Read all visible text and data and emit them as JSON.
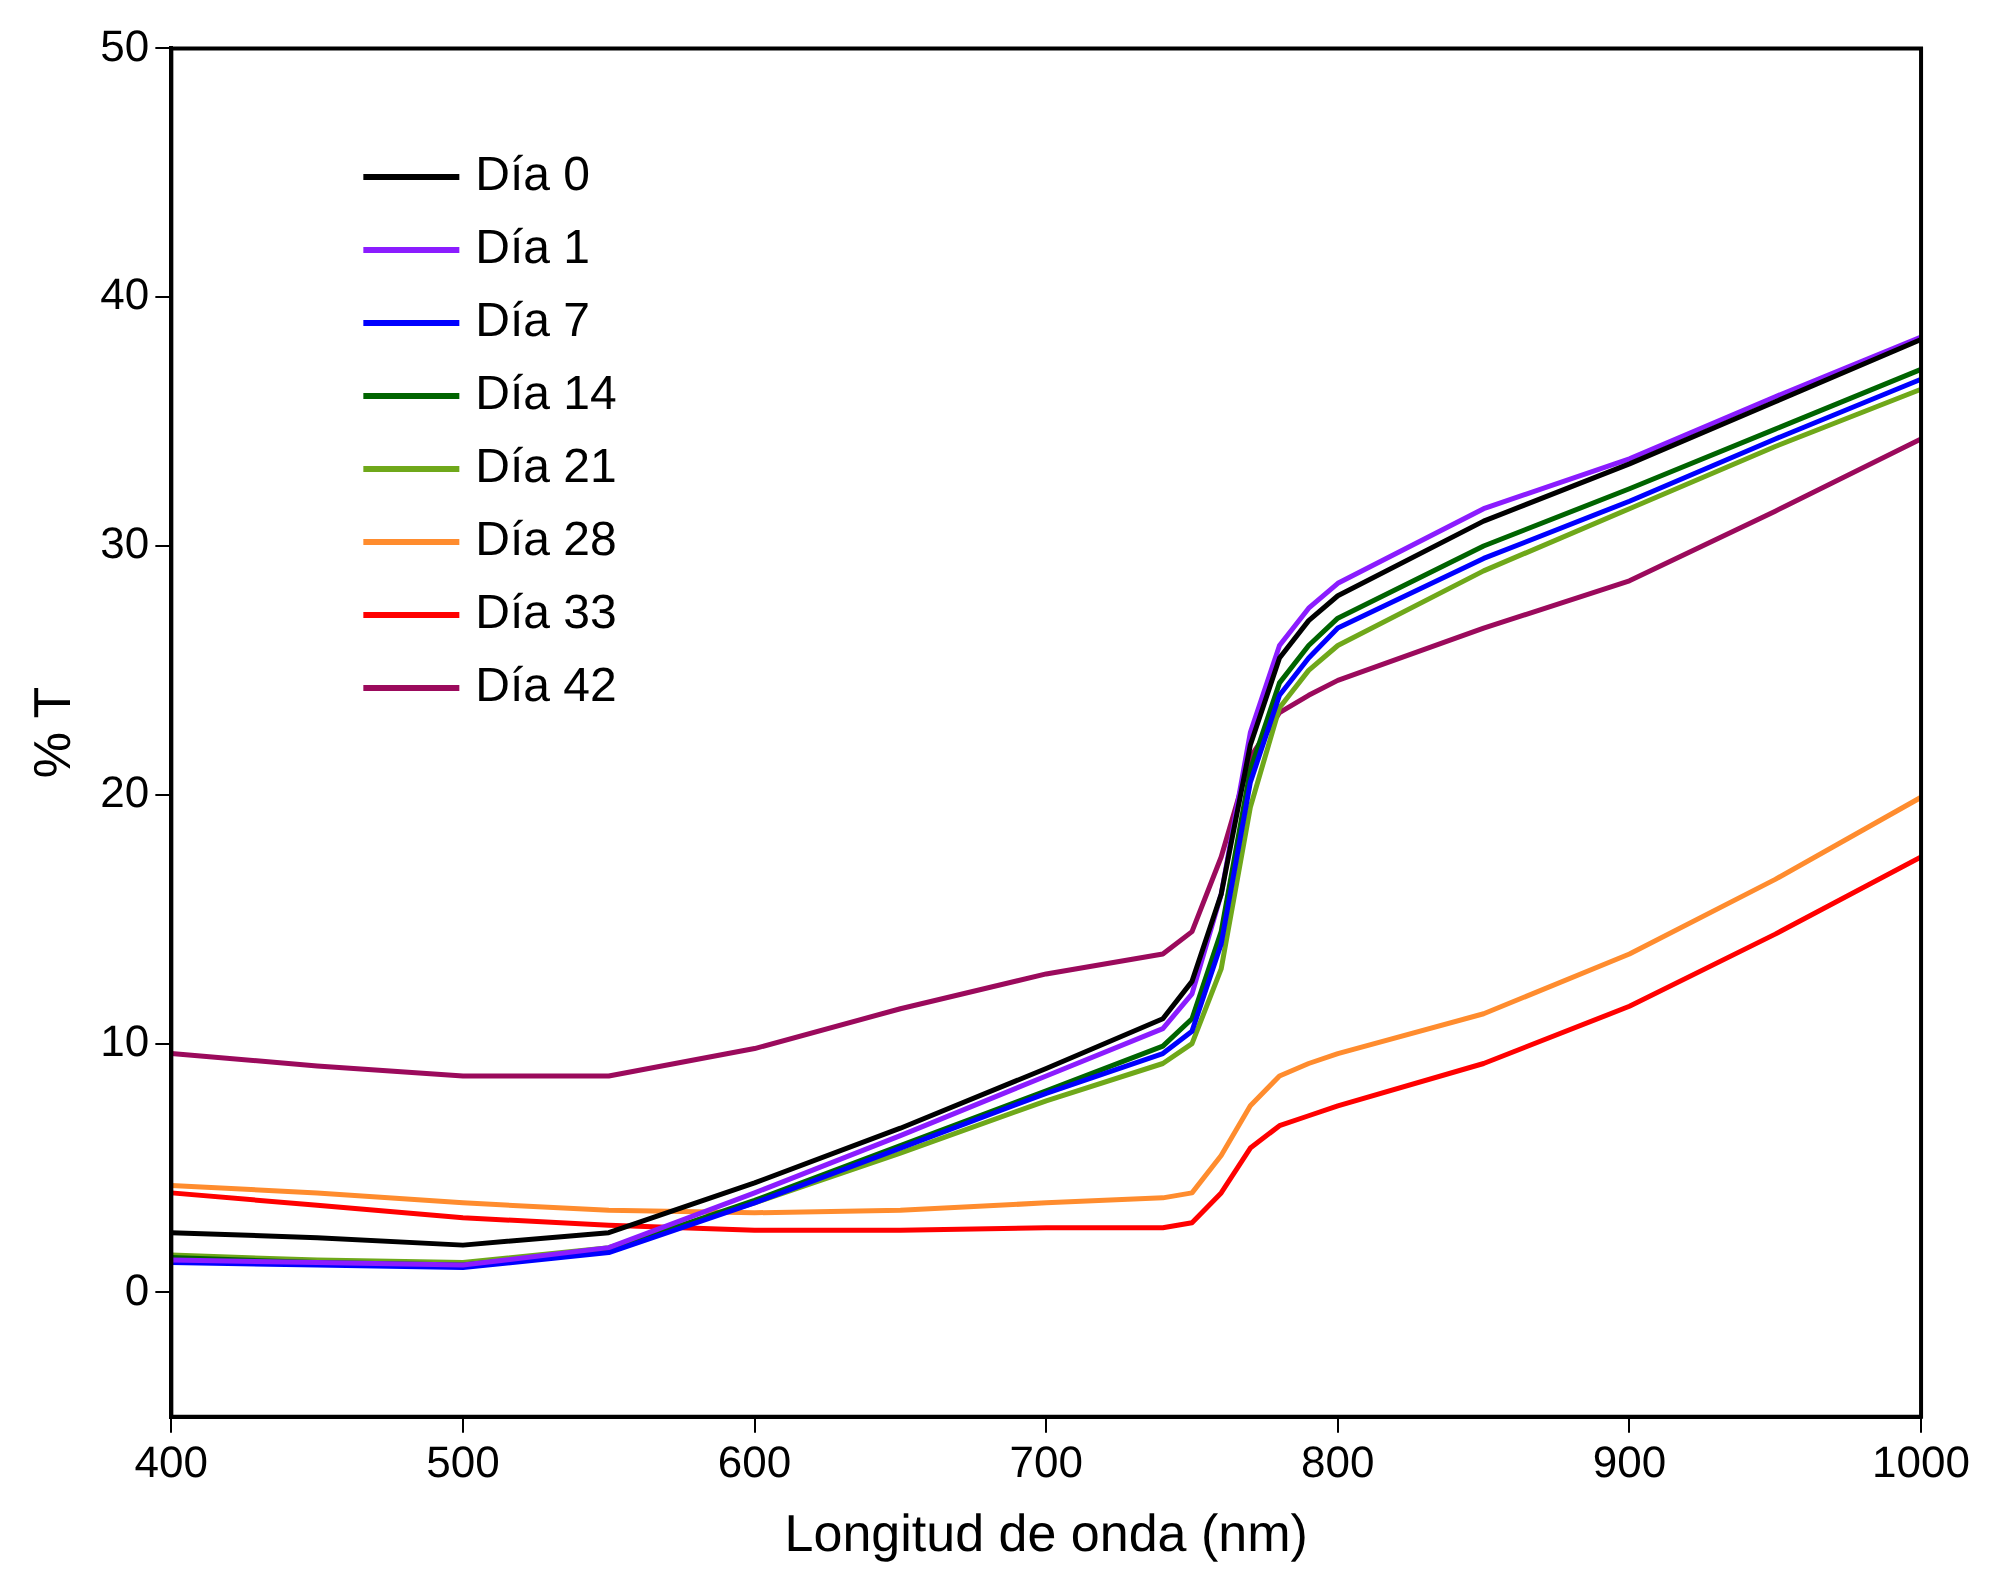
{
  "chart_data": {
    "type": "line",
    "xlabel": "Longitud de onda (nm)",
    "ylabel": "% T",
    "x": [
      400,
      450,
      500,
      550,
      600,
      650,
      700,
      740,
      750,
      760,
      770,
      780,
      790,
      800,
      850,
      900,
      950,
      1000
    ],
    "series": [
      {
        "name": "Día 0",
        "color": "#000000",
        "values": [
          2.4,
          2.2,
          1.9,
          2.4,
          4.4,
          6.6,
          9.0,
          11.0,
          12.5,
          16,
          22,
          25.5,
          27,
          28,
          31,
          33.3,
          35.8,
          38.3
        ]
      },
      {
        "name": "Día 1",
        "color": "#8b1cff",
        "values": [
          1.3,
          1.2,
          1.1,
          1.8,
          4.0,
          6.3,
          8.7,
          10.6,
          12,
          16,
          22.5,
          26,
          27.5,
          28.5,
          31.5,
          33.5,
          36,
          38.4
        ]
      },
      {
        "name": "Día 7",
        "color": "#0000ff",
        "values": [
          1.2,
          1.1,
          1.0,
          1.6,
          3.6,
          5.8,
          8.0,
          9.6,
          10.5,
          14,
          20.5,
          24,
          25.5,
          26.7,
          29.5,
          31.8,
          34.3,
          36.7
        ]
      },
      {
        "name": "Día 14",
        "color": "#006400",
        "values": [
          1.4,
          1.2,
          1.1,
          1.7,
          3.7,
          5.9,
          8.1,
          9.9,
          11,
          14.5,
          21,
          24.5,
          26,
          27.1,
          30,
          32.3,
          34.7,
          37.1
        ]
      },
      {
        "name": "Día 21",
        "color": "#6fa81a",
        "values": [
          1.5,
          1.3,
          1.2,
          1.8,
          3.6,
          5.6,
          7.7,
          9.2,
          10,
          13,
          19.5,
          23.5,
          25,
          26,
          29,
          31.5,
          34,
          36.3
        ]
      },
      {
        "name": "Día 28",
        "color": "#ff8c2e",
        "values": [
          4.3,
          4.0,
          3.6,
          3.3,
          3.2,
          3.3,
          3.6,
          3.8,
          4.0,
          5.5,
          7.5,
          8.7,
          9.2,
          9.6,
          11.2,
          13.6,
          16.6,
          19.9
        ]
      },
      {
        "name": "Día 33",
        "color": "#ff0000",
        "values": [
          4.0,
          3.5,
          3.0,
          2.7,
          2.5,
          2.5,
          2.6,
          2.6,
          2.8,
          4.0,
          5.8,
          6.7,
          7.1,
          7.5,
          9.2,
          11.5,
          14.4,
          17.5
        ]
      },
      {
        "name": "Día 42",
        "color": "#9b0a5c",
        "values": [
          9.6,
          9.1,
          8.7,
          8.7,
          9.8,
          11.4,
          12.8,
          13.6,
          14.5,
          17.5,
          21.5,
          23.3,
          24.0,
          24.6,
          26.7,
          28.6,
          31.4,
          34.3
        ]
      }
    ],
    "xlim": [
      400,
      1000
    ],
    "xticks": [
      400,
      500,
      600,
      700,
      800,
      900,
      1000
    ],
    "ylim": [
      -5,
      50
    ],
    "yticks": [
      0,
      10,
      20,
      30,
      40,
      50
    ],
    "grid": false,
    "legend": "top left",
    "marker": "none",
    "line_style": "solid"
  }
}
